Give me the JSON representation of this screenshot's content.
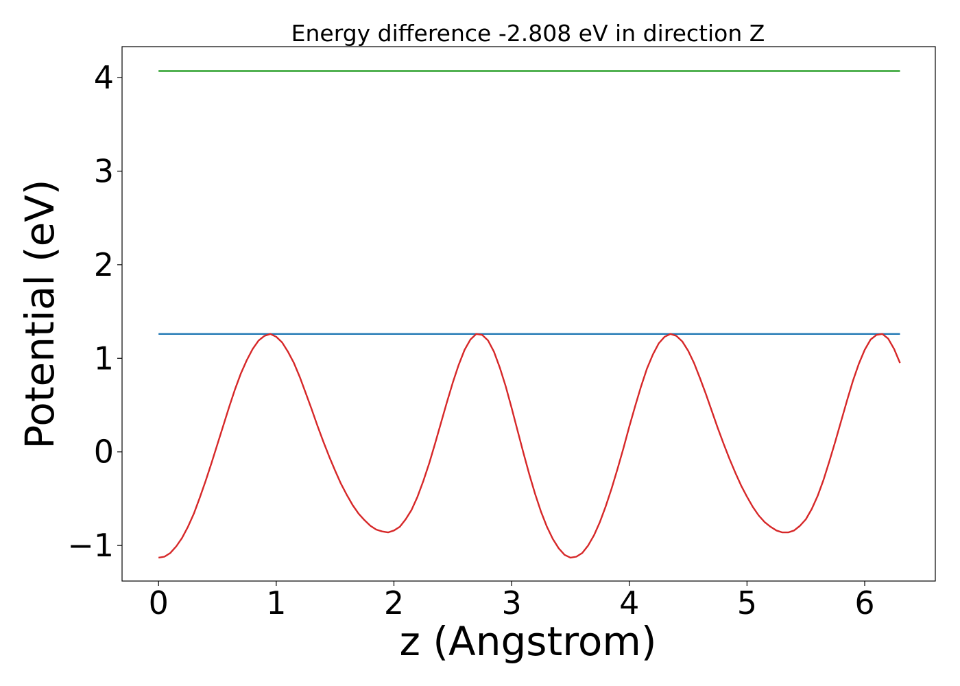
{
  "chart_data": {
    "type": "line",
    "title": "Energy difference -2.808 eV in direction Z",
    "xlabel": "z (Angstrom)",
    "ylabel": "Potential (eV)",
    "xlim": [
      -0.31,
      6.6
    ],
    "ylim": [
      -1.38,
      4.33
    ],
    "xticks": [
      0,
      1,
      2,
      3,
      4,
      5,
      6
    ],
    "xtick_labels": [
      "0",
      "1",
      "2",
      "3",
      "4",
      "5",
      "6"
    ],
    "yticks": [
      -1,
      0,
      1,
      2,
      3,
      4
    ],
    "ytick_labels": [
      "−1",
      "0",
      "1",
      "2",
      "3",
      "4"
    ],
    "grid": false,
    "legend": "none",
    "series": [
      {
        "color": "#2ca02c",
        "x": [
          0.0,
          6.3
        ],
        "y": [
          4.07,
          4.07
        ]
      },
      {
        "color": "#1f77b4",
        "x": [
          0.0,
          6.3
        ],
        "y": [
          1.26,
          1.26
        ]
      },
      {
        "color": "#d62728",
        "x": [
          0.0,
          0.05,
          0.1,
          0.15,
          0.2,
          0.25,
          0.3,
          0.35,
          0.4,
          0.45,
          0.5,
          0.55,
          0.6,
          0.65,
          0.7,
          0.75,
          0.8,
          0.85,
          0.9,
          0.95,
          1.0,
          1.05,
          1.1,
          1.15,
          1.2,
          1.25,
          1.3,
          1.35,
          1.4,
          1.45,
          1.5,
          1.55,
          1.6,
          1.65,
          1.7,
          1.75,
          1.8,
          1.85,
          1.9,
          1.95,
          2.0,
          2.05,
          2.1,
          2.15,
          2.2,
          2.25,
          2.3,
          2.35,
          2.4,
          2.45,
          2.5,
          2.55,
          2.6,
          2.65,
          2.7,
          2.75,
          2.8,
          2.85,
          2.9,
          2.95,
          3.0,
          3.05,
          3.1,
          3.15,
          3.2,
          3.25,
          3.3,
          3.35,
          3.4,
          3.45,
          3.5,
          3.55,
          3.6,
          3.65,
          3.7,
          3.75,
          3.8,
          3.85,
          3.9,
          3.95,
          4.0,
          4.05,
          4.1,
          4.15,
          4.2,
          4.25,
          4.3,
          4.35,
          4.4,
          4.45,
          4.5,
          4.55,
          4.6,
          4.65,
          4.7,
          4.75,
          4.8,
          4.85,
          4.9,
          4.95,
          5.0,
          5.05,
          5.1,
          5.15,
          5.2,
          5.25,
          5.3,
          5.35,
          5.4,
          5.45,
          5.5,
          5.55,
          5.6,
          5.65,
          5.7,
          5.75,
          5.8,
          5.85,
          5.9,
          5.95,
          6.0,
          6.05,
          6.1,
          6.15,
          6.2,
          6.25,
          6.3
        ],
        "y": [
          -1.13,
          -1.12,
          -1.08,
          -1.01,
          -0.92,
          -0.8,
          -0.66,
          -0.49,
          -0.31,
          -0.12,
          0.08,
          0.28,
          0.48,
          0.67,
          0.84,
          0.98,
          1.1,
          1.19,
          1.24,
          1.26,
          1.23,
          1.17,
          1.07,
          0.95,
          0.8,
          0.63,
          0.46,
          0.28,
          0.11,
          -0.05,
          -0.2,
          -0.34,
          -0.46,
          -0.57,
          -0.66,
          -0.73,
          -0.79,
          -0.83,
          -0.85,
          -0.86,
          -0.84,
          -0.8,
          -0.72,
          -0.62,
          -0.48,
          -0.31,
          -0.12,
          0.09,
          0.31,
          0.53,
          0.74,
          0.93,
          1.09,
          1.2,
          1.26,
          1.25,
          1.19,
          1.07,
          0.9,
          0.7,
          0.47,
          0.23,
          -0.01,
          -0.24,
          -0.45,
          -0.64,
          -0.8,
          -0.93,
          -1.03,
          -1.1,
          -1.13,
          -1.12,
          -1.08,
          -1.0,
          -0.89,
          -0.75,
          -0.58,
          -0.39,
          -0.18,
          0.04,
          0.27,
          0.49,
          0.7,
          0.89,
          1.04,
          1.16,
          1.23,
          1.26,
          1.24,
          1.18,
          1.08,
          0.95,
          0.79,
          0.62,
          0.44,
          0.26,
          0.09,
          -0.07,
          -0.22,
          -0.36,
          -0.48,
          -0.59,
          -0.68,
          -0.75,
          -0.8,
          -0.84,
          -0.86,
          -0.86,
          -0.84,
          -0.79,
          -0.72,
          -0.61,
          -0.47,
          -0.3,
          -0.1,
          0.11,
          0.33,
          0.55,
          0.76,
          0.94,
          1.09,
          1.2,
          1.25,
          1.26,
          1.21,
          1.1,
          0.95
        ]
      }
    ]
  }
}
